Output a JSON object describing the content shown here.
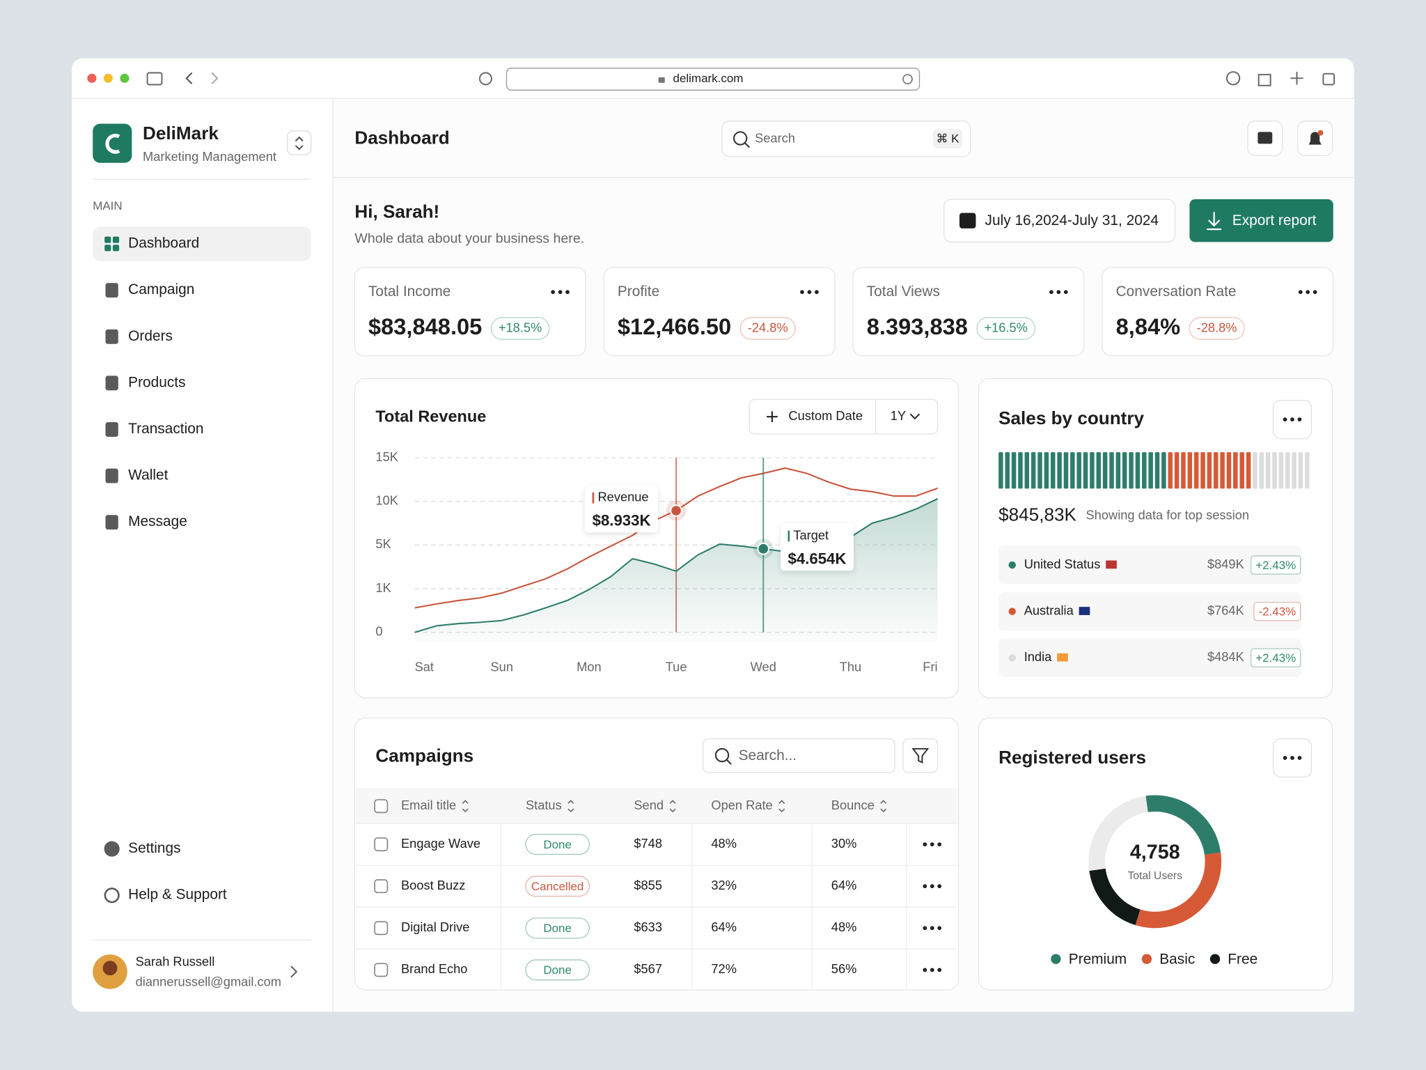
{
  "browser": {
    "url": "delimark.com"
  },
  "sidebar": {
    "brand": "DeliMark",
    "tagline": "Marketing Management",
    "section": "MAIN",
    "nav": [
      "Dashboard",
      "Campaign",
      "Orders",
      "Products",
      "Transaction",
      "Wallet",
      "Message"
    ],
    "footer_nav": [
      "Settings",
      "Help & Support"
    ],
    "user": {
      "name": "Sarah Russell",
      "email": "diannerussell@gmail.com"
    }
  },
  "header": {
    "title": "Dashboard",
    "search": "Search",
    "shortcut": "⌘ K"
  },
  "greeting": {
    "title": "Hi, Sarah!",
    "subtitle": "Whole data about your business here.",
    "date_range": "July 16,2024-July 31, 2024",
    "export": "Export report"
  },
  "stats": [
    {
      "label": "Total Income",
      "value": "$83,848.05",
      "change": "+18.5%",
      "color": "#2e8a68"
    },
    {
      "label": "Profite",
      "value": "$12,466.50",
      "change": "-24.8%",
      "color": "#c8553d"
    },
    {
      "label": "Total Views",
      "value": "8.393,838",
      "change": "+16.5%",
      "color": "#2e8a68"
    },
    {
      "label": "Conversation Rate",
      "value": "8,84%",
      "change": "-28.8%",
      "color": "#c8553d"
    }
  ],
  "revenue_chart": {
    "type": "line",
    "title": "Total Revenue",
    "custom_date": "Custom Date",
    "period": "1Y",
    "x": [
      0,
      0.25,
      0.5,
      0.75,
      1,
      1.25,
      1.5,
      1.75,
      2,
      2.25,
      2.5,
      2.75,
      3,
      3.25,
      3.5,
      3.75,
      4,
      4.25,
      4.5,
      4.75,
      5,
      5.25,
      5.5,
      5.75,
      6
    ],
    "xlim": [
      0,
      6
    ],
    "xticks": [
      {
        "value": 0,
        "label": "Sat"
      },
      {
        "value": 1,
        "label": "Sun"
      },
      {
        "value": 2,
        "label": "Mon"
      },
      {
        "value": 3,
        "label": "Tue"
      },
      {
        "value": 4,
        "label": "Wed"
      },
      {
        "value": 5,
        "label": "Thu"
      },
      {
        "value": 6,
        "label": "Fri"
      }
    ],
    "ylim": [
      0,
      15000
    ],
    "yticks": [
      0,
      {
        "value": 1000,
        "label": "1K"
      },
      {
        "value": 5000,
        "label": "5K"
      },
      {
        "value": 10000,
        "label": "10K"
      },
      {
        "value": 15000,
        "label": "15K"
      }
    ],
    "grid": true,
    "series": [
      {
        "name": "Revenue",
        "color": "#c8553d",
        "area": false,
        "values": [
          560,
          650,
          730,
          790,
          900,
          1250,
          1900,
          2800,
          3900,
          4900,
          6100,
          7800,
          8933,
          10600,
          11700,
          12700,
          13200,
          13800,
          13200,
          12200,
          11400,
          11100,
          10600,
          10600,
          11500
        ],
        "value_labels": [
          null,
          null,
          null,
          null,
          null,
          null,
          null,
          null,
          null,
          null,
          null,
          null,
          "$8.933K",
          null,
          null,
          null,
          null,
          null,
          null,
          null,
          null,
          null,
          null,
          null,
          null
        ]
      },
      {
        "name": "Target",
        "color": "#2e7d6b",
        "area": true,
        "values": [
          0,
          150,
          200,
          230,
          270,
          400,
          560,
          730,
          980,
          2100,
          3750,
          3250,
          2600,
          4100,
          5100,
          4900,
          4654,
          4400,
          3900,
          4500,
          5900,
          7500,
          8200,
          9100,
          10300
        ],
        "value_labels": [
          null,
          null,
          null,
          null,
          null,
          null,
          null,
          null,
          null,
          null,
          null,
          null,
          null,
          null,
          null,
          null,
          "$4.654K",
          null,
          null,
          null,
          null,
          null,
          null,
          null,
          null
        ]
      }
    ]
  },
  "sales_by_country": {
    "title": "Sales by country",
    "total": "$845,83K",
    "note": "Showing data for top session",
    "countries": [
      {
        "name": "United Status",
        "value": "$849K",
        "change": "+2.43%",
        "color": "#2e7d6b",
        "change_color": "#2e8a68"
      },
      {
        "name": "Australia",
        "value": "$764K",
        "change": "-2.43%",
        "color": "#d65a36",
        "change_color": "#c8553d"
      },
      {
        "name": "India",
        "value": "$484K",
        "change": "+2.43%",
        "color": "#dcdcdc",
        "change_color": "#2e8a68"
      }
    ]
  },
  "campaigns": {
    "title": "Campaigns",
    "search": "Search...",
    "columns": [
      "Email title",
      "Status",
      "Send",
      "Open Rate",
      "Bounce"
    ],
    "rows": [
      {
        "title": "Engage Wave",
        "status": "Done",
        "send": "$748",
        "open_rate": "48%",
        "bounce": "30%",
        "status_color": "#2e8a68"
      },
      {
        "title": "Boost Buzz",
        "status": "Cancelled",
        "send": "$855",
        "open_rate": "32%",
        "bounce": "64%",
        "status_color": "#c8553d"
      },
      {
        "title": "Digital Drive",
        "status": "Done",
        "send": "$633",
        "open_rate": "64%",
        "bounce": "48%",
        "status_color": "#2e8a68"
      },
      {
        "title": "Brand Echo",
        "status": "Done",
        "send": "$567",
        "open_rate": "72%",
        "bounce": "56%",
        "status_color": "#2e8a68"
      }
    ]
  },
  "registered_users": {
    "type": "donut",
    "title": "Registered users",
    "total": "4,758",
    "total_label": "Total Users",
    "series": [
      {
        "name": "Premium",
        "color": "#2e7d6b",
        "value": 25
      },
      {
        "name": "Basic",
        "color": "#d65a36",
        "value": 32
      },
      {
        "name": "Free",
        "color": "#111a16",
        "value": 18
      }
    ]
  }
}
